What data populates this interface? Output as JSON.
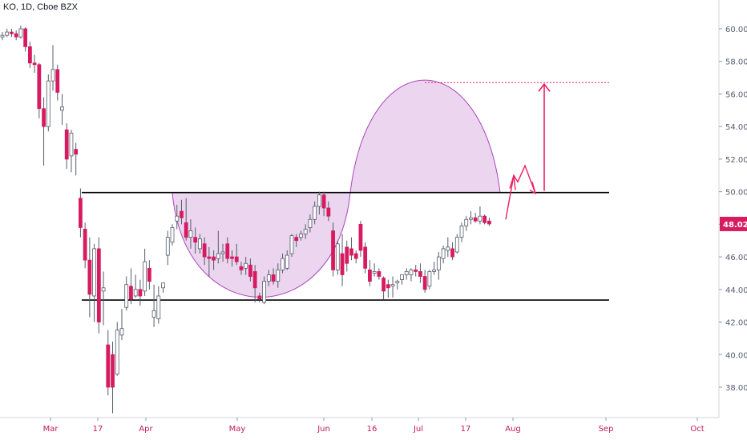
{
  "header": {
    "symbol_line": "KO, 1D, Cboe BZX"
  },
  "colors": {
    "up": "#ffffff",
    "up_border": "#555c6b",
    "down": "#d81b60",
    "wick": "#555c6b",
    "cup_fill": "#e1bee7",
    "cup_stroke": "#ab47bc",
    "arrow": "#e91e63",
    "line": "#000000",
    "axis": "#555c6b"
  },
  "chart_data": {
    "type": "candlestick",
    "title": "KO, 1D, Cboe BZX",
    "ylim": [
      36.2,
      61.6
    ],
    "y_ticks": [
      "38.00",
      "40.00",
      "42.00",
      "44.00",
      "46.00",
      "48.00",
      "50.00",
      "52.00",
      "54.00",
      "56.00",
      "58.00",
      "60.00"
    ],
    "x_ticks": [
      "Mar",
      "17",
      "Apr",
      "May",
      "Jun",
      "16",
      "Jul",
      "17",
      "Aug",
      "Sep",
      "Oct"
    ],
    "last_price": "48.02",
    "resistance_level": 49.95,
    "support_level": 43.35,
    "target_level": 56.7,
    "candles": [
      [
        59.5,
        59.8,
        59.3,
        59.6
      ],
      [
        59.6,
        60.0,
        59.5,
        59.8
      ],
      [
        59.8,
        60.0,
        59.5,
        59.7
      ],
      [
        59.7,
        59.9,
        59.3,
        59.5
      ],
      [
        59.5,
        60.2,
        59.4,
        60.0
      ],
      [
        60.0,
        60.1,
        58.6,
        58.9
      ],
      [
        58.9,
        59.2,
        57.6,
        57.9
      ],
      [
        57.9,
        58.4,
        57.3,
        57.8
      ],
      [
        57.8,
        57.9,
        54.5,
        55.1
      ],
      [
        55.1,
        55.8,
        51.6,
        54.0
      ],
      [
        54.0,
        57.2,
        53.7,
        56.8
      ],
      [
        56.8,
        59.0,
        56.2,
        57.5
      ],
      [
        57.5,
        57.8,
        55.6,
        56.1
      ],
      [
        55.0,
        56.0,
        54.1,
        55.2
      ],
      [
        53.8,
        54.2,
        51.4,
        52.0
      ],
      [
        52.2,
        53.8,
        51.2,
        53.6
      ],
      [
        52.6,
        53.0,
        51.0,
        52.3
      ],
      [
        49.6,
        50.2,
        47.2,
        47.8
      ],
      [
        47.7,
        48.1,
        45.3,
        45.8
      ],
      [
        45.8,
        47.2,
        42.3,
        43.7
      ],
      [
        43.6,
        46.8,
        42.0,
        46.5
      ],
      [
        46.5,
        47.2,
        41.3,
        42.0
      ],
      [
        43.9,
        45.1,
        41.8,
        44.1
      ],
      [
        40.6,
        41.5,
        37.5,
        38.0
      ],
      [
        40.0,
        40.8,
        36.4,
        38.0
      ],
      [
        38.8,
        42.0,
        38.7,
        41.5
      ],
      [
        41.2,
        42.8,
        40.9,
        41.6
      ],
      [
        42.9,
        44.8,
        42.7,
        44.3
      ],
      [
        44.2,
        45.3,
        43.1,
        43.4
      ],
      [
        43.6,
        44.9,
        43.5,
        44.0
      ],
      [
        44.0,
        44.6,
        43.0,
        43.6
      ],
      [
        43.9,
        46.5,
        43.6,
        45.7
      ],
      [
        45.3,
        45.8,
        44.0,
        44.5
      ],
      [
        42.3,
        44.3,
        41.7,
        42.7
      ],
      [
        42.2,
        44.2,
        41.9,
        43.6
      ],
      [
        44.1,
        44.4,
        43.8,
        44.4
      ],
      [
        46.1,
        47.6,
        45.5,
        47.2
      ],
      [
        46.9,
        48.0,
        46.7,
        47.8
      ],
      [
        48.2,
        49.2,
        47.7,
        48.5
      ],
      [
        48.8,
        49.5,
        48.0,
        48.4
      ],
      [
        48.1,
        49.6,
        47.0,
        47.2
      ],
      [
        47.2,
        48.3,
        46.5,
        47.6
      ],
      [
        47.2,
        47.8,
        46.2,
        46.9
      ],
      [
        46.5,
        47.4,
        46.2,
        47.1
      ],
      [
        46.8,
        47.2,
        45.5,
        46.0
      ],
      [
        46.0,
        46.6,
        44.8,
        45.9
      ],
      [
        46.0,
        46.4,
        45.2,
        45.8
      ],
      [
        45.9,
        47.6,
        45.6,
        46.2
      ],
      [
        46.2,
        46.8,
        45.7,
        46.3
      ],
      [
        46.8,
        47.2,
        45.6,
        45.9
      ],
      [
        46.0,
        46.4,
        45.4,
        45.9
      ],
      [
        46.0,
        46.8,
        45.5,
        45.7
      ],
      [
        45.4,
        45.7,
        44.9,
        45.2
      ],
      [
        45.3,
        46.0,
        44.9,
        45.6
      ],
      [
        45.5,
        45.9,
        44.5,
        44.8
      ],
      [
        45.1,
        45.5,
        43.2,
        44.1
      ],
      [
        43.6,
        43.8,
        43.2,
        43.4
      ],
      [
        43.2,
        44.8,
        43.1,
        44.5
      ],
      [
        44.5,
        45.2,
        44.2,
        44.9
      ],
      [
        44.9,
        45.3,
        44.3,
        44.5
      ],
      [
        44.5,
        45.6,
        44.1,
        45.2
      ],
      [
        45.2,
        46.2,
        45.0,
        45.9
      ],
      [
        45.3,
        46.4,
        45.2,
        46.1
      ],
      [
        46.2,
        47.4,
        46.0,
        47.3
      ],
      [
        47.2,
        47.4,
        46.6,
        47.0
      ],
      [
        47.2,
        47.6,
        47.0,
        47.4
      ],
      [
        47.4,
        48.0,
        47.1,
        47.7
      ],
      [
        47.8,
        48.6,
        47.5,
        48.3
      ],
      [
        48.3,
        49.4,
        48.0,
        49.1
      ],
      [
        49.1,
        50.0,
        48.6,
        49.8
      ],
      [
        49.8,
        50.0,
        48.5,
        49.0
      ],
      [
        49.0,
        49.4,
        48.2,
        48.5
      ],
      [
        47.6,
        48.1,
        44.8,
        45.2
      ],
      [
        45.2,
        47.0,
        44.9,
        46.8
      ],
      [
        46.2,
        47.4,
        44.2,
        44.9
      ],
      [
        46.6,
        47.0,
        45.1,
        45.6
      ],
      [
        46.5,
        47.2,
        45.8,
        46.1
      ],
      [
        46.2,
        46.4,
        45.6,
        45.9
      ],
      [
        48.0,
        48.2,
        46.0,
        46.4
      ],
      [
        46.6,
        46.9,
        45.0,
        45.3
      ],
      [
        45.2,
        45.8,
        44.2,
        44.5
      ],
      [
        45.0,
        45.6,
        44.8,
        45.1
      ],
      [
        45.1,
        45.3,
        44.6,
        44.8
      ],
      [
        44.7,
        44.8,
        43.4,
        43.9
      ],
      [
        44.3,
        44.6,
        43.5,
        44.1
      ],
      [
        44.2,
        44.8,
        43.5,
        44.3
      ],
      [
        44.4,
        44.6,
        44.0,
        44.5
      ],
      [
        44.6,
        44.9,
        44.3,
        44.9
      ],
      [
        44.9,
        45.3,
        44.6,
        45.1
      ],
      [
        44.9,
        45.3,
        44.5,
        45.2
      ],
      [
        45.2,
        45.5,
        44.8,
        45.1
      ],
      [
        45.1,
        45.6,
        44.4,
        44.8
      ],
      [
        44.8,
        45.2,
        43.8,
        44.0
      ],
      [
        44.2,
        45.2,
        44.0,
        45.1
      ],
      [
        45.1,
        45.7,
        44.9,
        45.2
      ],
      [
        45.2,
        46.3,
        44.6,
        46.0
      ],
      [
        45.9,
        46.7,
        45.6,
        46.5
      ],
      [
        46.4,
        47.2,
        46.0,
        46.6
      ],
      [
        46.5,
        46.9,
        45.8,
        46.0
      ],
      [
        46.3,
        47.4,
        46.2,
        47.2
      ],
      [
        47.2,
        48.1,
        46.9,
        47.9
      ],
      [
        47.9,
        48.5,
        47.6,
        48.3
      ],
      [
        48.3,
        48.8,
        48.0,
        48.4
      ],
      [
        48.4,
        48.7,
        48.1,
        48.2
      ],
      [
        48.2,
        49.1,
        48.0,
        48.5
      ],
      [
        48.5,
        48.6,
        48.0,
        48.1
      ],
      [
        48.2,
        48.4,
        47.9,
        48.02
      ]
    ]
  }
}
